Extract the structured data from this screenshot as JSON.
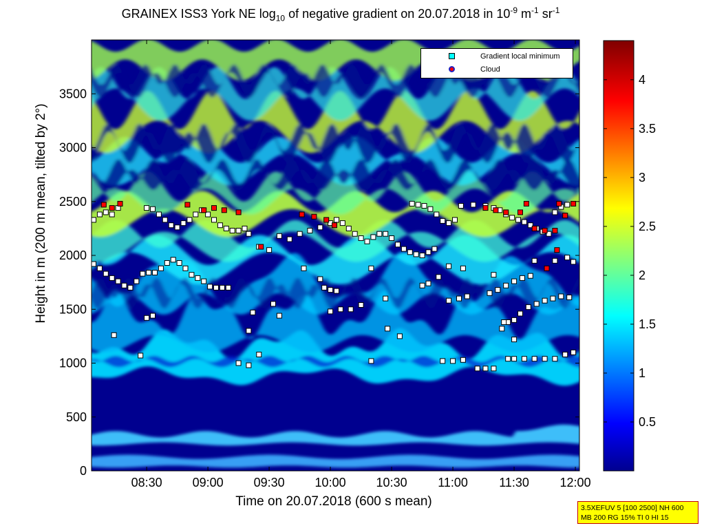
{
  "title": {
    "prefix": "GRAINEX ISS3 York NE log",
    "sub": "10",
    "middle": " of negative gradient on 20.07.2018 in 10",
    "sup1": "-9",
    "unit1": " m",
    "sup2": "-1",
    "unit2": " sr",
    "sup3": "-1"
  },
  "legend": {
    "gradient_label": "Gradient local minimum",
    "cloud_label": "Cloud"
  },
  "info_box": {
    "line1": "3.5XEFUV 5 [100 2500] NH 600",
    "line2": "MB 200 RG 15% TI 0 HI 15"
  },
  "colors": {
    "deep_blue": "#00008f",
    "cyan": "#00e0ff",
    "yellow": "#ffff00",
    "red": "#ff0000",
    "dark_red": "#800000",
    "info_box_bg": "#ffff00"
  },
  "chart_data": {
    "type": "heatmap",
    "xlabel": "Time on 20.07.2018 (600 s mean)",
    "ylabel": "Height in m (200 m mean, tilted by 2°)",
    "x_ticks": [
      "08:30",
      "09:00",
      "09:30",
      "10:00",
      "10:30",
      "11:00",
      "11:30",
      "12:00"
    ],
    "x_tick_minutes": [
      510,
      540,
      570,
      600,
      630,
      660,
      690,
      720
    ],
    "xlim_minutes": [
      483,
      722
    ],
    "y_ticks": [
      0,
      500,
      1000,
      1500,
      2000,
      2500,
      3000,
      3500
    ],
    "ylim": [
      0,
      4000
    ],
    "colorbar": {
      "ticks": [
        0.5,
        1,
        1.5,
        2,
        2.5,
        3,
        3.5,
        4
      ],
      "tick_labels": [
        "0.5",
        "1",
        "1.5",
        "2",
        "2.5",
        "3",
        "3.5",
        "4"
      ],
      "range": [
        0,
        4.4
      ],
      "colormap": "jet"
    },
    "series": [
      {
        "name": "Gradient local minimum",
        "marker": "square",
        "points": [
          [
            484,
            1920
          ],
          [
            487,
            1880
          ],
          [
            490,
            1830
          ],
          [
            493,
            1790
          ],
          [
            496,
            1760
          ],
          [
            499,
            1720
          ],
          [
            502,
            1700
          ],
          [
            505,
            1760
          ],
          [
            508,
            1830
          ],
          [
            511,
            1840
          ],
          [
            514,
            1840
          ],
          [
            517,
            1880
          ],
          [
            520,
            1930
          ],
          [
            523,
            1960
          ],
          [
            526,
            1930
          ],
          [
            529,
            1880
          ],
          [
            532,
            1820
          ],
          [
            535,
            1790
          ],
          [
            538,
            1760
          ],
          [
            541,
            1710
          ],
          [
            544,
            1700
          ],
          [
            547,
            1700
          ],
          [
            550,
            1700
          ],
          [
            484,
            2330
          ],
          [
            487,
            2380
          ],
          [
            490,
            2400
          ],
          [
            493,
            2380
          ],
          [
            496,
            2440
          ],
          [
            510,
            2440
          ],
          [
            513,
            2430
          ],
          [
            516,
            2380
          ],
          [
            519,
            2330
          ],
          [
            522,
            2280
          ],
          [
            525,
            2260
          ],
          [
            528,
            2300
          ],
          [
            531,
            2330
          ],
          [
            534,
            2380
          ],
          [
            537,
            2420
          ],
          [
            540,
            2380
          ],
          [
            543,
            2330
          ],
          [
            546,
            2280
          ],
          [
            549,
            2250
          ],
          [
            552,
            2230
          ],
          [
            555,
            2230
          ],
          [
            558,
            2250
          ],
          [
            560,
            2200
          ],
          [
            565,
            2080
          ],
          [
            570,
            2050
          ],
          [
            575,
            2180
          ],
          [
            580,
            2150
          ],
          [
            585,
            2200
          ],
          [
            590,
            2230
          ],
          [
            595,
            2260
          ],
          [
            600,
            2300
          ],
          [
            603,
            2330
          ],
          [
            606,
            2300
          ],
          [
            609,
            2250
          ],
          [
            612,
            2200
          ],
          [
            615,
            2160
          ],
          [
            618,
            2130
          ],
          [
            621,
            2170
          ],
          [
            624,
            2200
          ],
          [
            627,
            2200
          ],
          [
            630,
            2160
          ],
          [
            633,
            2100
          ],
          [
            636,
            2060
          ],
          [
            639,
            2030
          ],
          [
            642,
            2010
          ],
          [
            645,
            2000
          ],
          [
            648,
            2030
          ],
          [
            651,
            2060
          ],
          [
            640,
            2480
          ],
          [
            643,
            2470
          ],
          [
            646,
            2460
          ],
          [
            649,
            2430
          ],
          [
            652,
            2380
          ],
          [
            655,
            2320
          ],
          [
            658,
            2300
          ],
          [
            661,
            2330
          ],
          [
            664,
            2460
          ],
          [
            670,
            2470
          ],
          [
            676,
            2460
          ],
          [
            680,
            2440
          ],
          [
            683,
            2420
          ],
          [
            686,
            2380
          ],
          [
            689,
            2350
          ],
          [
            692,
            2330
          ],
          [
            695,
            2310
          ],
          [
            698,
            2280
          ],
          [
            701,
            2250
          ],
          [
            704,
            2220
          ],
          [
            707,
            2200
          ],
          [
            710,
            2400
          ],
          [
            713,
            2450
          ],
          [
            716,
            2470
          ],
          [
            565,
            1080
          ],
          [
            555,
            1000
          ],
          [
            560,
            980
          ],
          [
            620,
            1020
          ],
          [
            655,
            1020
          ],
          [
            660,
            1020
          ],
          [
            665,
            1030
          ],
          [
            672,
            950
          ],
          [
            676,
            950
          ],
          [
            680,
            950
          ],
          [
            687,
            1040
          ],
          [
            690,
            1040
          ],
          [
            695,
            1040
          ],
          [
            700,
            1040
          ],
          [
            705,
            1040
          ],
          [
            710,
            1040
          ],
          [
            715,
            1080
          ],
          [
            719,
            1100
          ],
          [
            678,
            1650
          ],
          [
            682,
            1680
          ],
          [
            686,
            1720
          ],
          [
            690,
            1760
          ],
          [
            694,
            1790
          ],
          [
            698,
            1810
          ],
          [
            684,
            1320
          ],
          [
            687,
            1380
          ],
          [
            690,
            1400
          ],
          [
            693,
            1460
          ],
          [
            697,
            1520
          ],
          [
            701,
            1550
          ],
          [
            705,
            1580
          ],
          [
            709,
            1600
          ],
          [
            713,
            1620
          ],
          [
            717,
            1610
          ],
          [
            507,
            1070
          ],
          [
            510,
            1420
          ],
          [
            513,
            1440
          ],
          [
            562,
            1470
          ],
          [
            575,
            1440
          ],
          [
            597,
            1700
          ],
          [
            600,
            1680
          ],
          [
            603,
            1670
          ],
          [
            645,
            1720
          ],
          [
            648,
            1740
          ],
          [
            658,
            1580
          ],
          [
            663,
            1600
          ],
          [
            667,
            1620
          ],
          [
            700,
            1950
          ],
          [
            710,
            1950
          ],
          [
            716,
            1980
          ],
          [
            719,
            1940
          ],
          [
            494,
            1260
          ],
          [
            572,
            1550
          ],
          [
            615,
            1540
          ],
          [
            628,
            1320
          ],
          [
            634,
            1250
          ],
          [
            627,
            1600
          ],
          [
            620,
            1880
          ],
          [
            560,
            1300
          ],
          [
            587,
            1880
          ],
          [
            595,
            1780
          ],
          [
            600,
            1480
          ],
          [
            605,
            1500
          ],
          [
            610,
            1500
          ],
          [
            653,
            1800
          ],
          [
            658,
            1900
          ],
          [
            665,
            1880
          ],
          [
            680,
            1820
          ],
          [
            685,
            1380
          ],
          [
            690,
            1220
          ]
        ]
      },
      {
        "name": "Cloud",
        "marker": "circle",
        "points": [
          [
            489,
            2470
          ],
          [
            493,
            2440
          ],
          [
            497,
            2480
          ],
          [
            530,
            2470
          ],
          [
            538,
            2420
          ],
          [
            543,
            2440
          ],
          [
            548,
            2420
          ],
          [
            555,
            2400
          ],
          [
            566,
            2080
          ],
          [
            586,
            2380
          ],
          [
            592,
            2360
          ],
          [
            598,
            2330
          ],
          [
            602,
            2280
          ],
          [
            676,
            2440
          ],
          [
            681,
            2420
          ],
          [
            686,
            2400
          ],
          [
            696,
            2480
          ],
          [
            700,
            2250
          ],
          [
            705,
            2230
          ],
          [
            710,
            2230
          ],
          [
            715,
            2370
          ],
          [
            712,
            2480
          ],
          [
            706,
            1880
          ],
          [
            719,
            2480
          ],
          [
            711,
            2050
          ],
          [
            693,
            2400
          ]
        ]
      }
    ]
  }
}
